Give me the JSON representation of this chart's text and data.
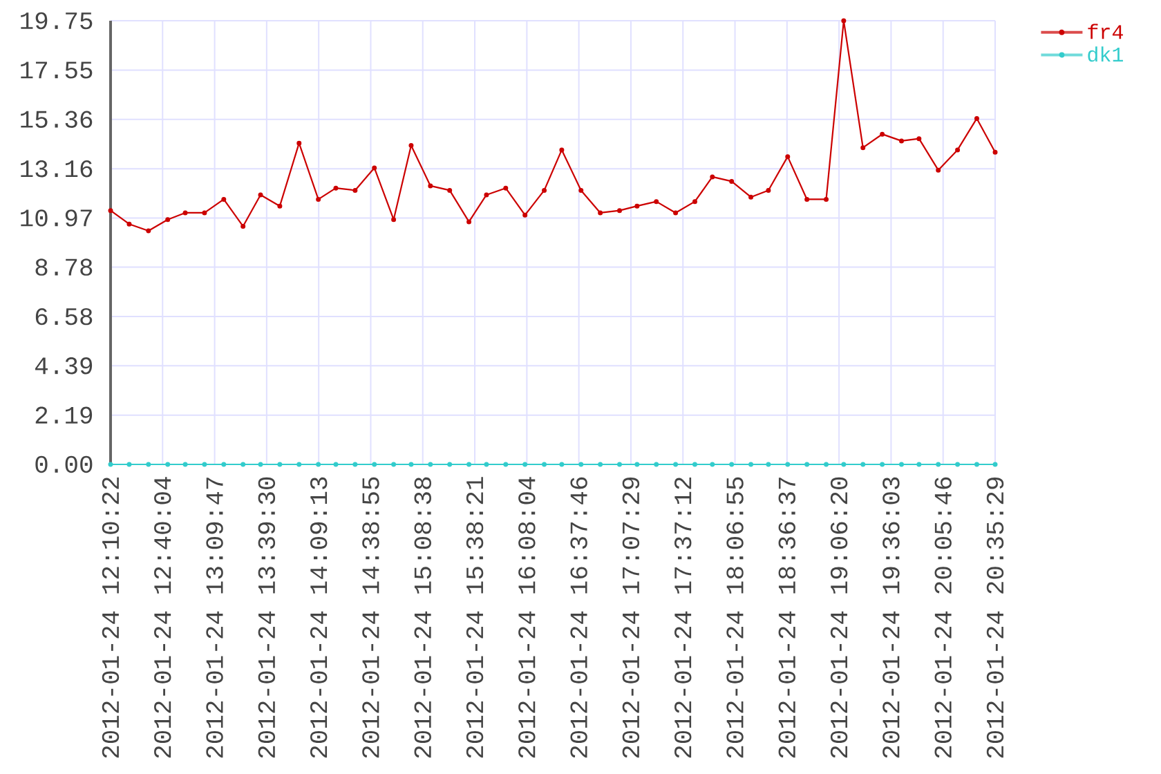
{
  "chart_data": {
    "type": "line",
    "x": [
      "2012-01-24T12:10:22",
      "2012-01-24T12:21",
      "2012-01-24T12:32",
      "2012-01-24T12:43",
      "2012-01-24T12:53",
      "2012-01-24T13:04",
      "2012-01-24T13:15",
      "2012-01-24T13:26",
      "2012-01-24T13:36",
      "2012-01-24T13:47",
      "2012-01-24T13:58",
      "2012-01-24T14:09",
      "2012-01-24T14:19",
      "2012-01-24T14:30",
      "2012-01-24T14:41",
      "2012-01-24T14:52",
      "2012-01-24T15:02",
      "2012-01-24T15:13",
      "2012-01-24T15:24",
      "2012-01-24T15:35",
      "2012-01-24T15:45",
      "2012-01-24T15:56",
      "2012-01-24T16:07",
      "2012-01-24T16:18",
      "2012-01-24T16:28",
      "2012-01-24T16:39",
      "2012-01-24T16:50",
      "2012-01-24T17:01",
      "2012-01-24T17:11",
      "2012-01-24T17:22",
      "2012-01-24T17:33",
      "2012-01-24T17:44",
      "2012-01-24T17:54",
      "2012-01-24T18:05",
      "2012-01-24T18:16",
      "2012-01-24T18:26",
      "2012-01-24T18:37",
      "2012-01-24T18:48",
      "2012-01-24T18:59",
      "2012-01-24T19:09",
      "2012-01-24T19:20",
      "2012-01-24T19:31",
      "2012-01-24T19:42",
      "2012-01-24T19:52",
      "2012-01-24T20:03",
      "2012-01-24T20:14",
      "2012-01-24T20:25",
      "2012-01-24T20:35:29"
    ],
    "series": [
      {
        "name": "fr4",
        "color": "#cc0000",
        "values": [
          11.3,
          10.7,
          10.4,
          10.9,
          11.2,
          11.2,
          11.8,
          10.6,
          12.0,
          11.5,
          14.3,
          11.8,
          12.3,
          12.2,
          13.2,
          10.9,
          14.2,
          12.4,
          12.2,
          10.8,
          12.0,
          12.3,
          11.1,
          12.2,
          14.0,
          12.2,
          11.2,
          11.3,
          11.5,
          11.7,
          11.2,
          11.7,
          12.8,
          12.6,
          11.9,
          12.2,
          13.7,
          11.8,
          11.8,
          19.75,
          14.1,
          14.7,
          14.4,
          14.5,
          13.1,
          14.0,
          15.4,
          13.9
        ]
      },
      {
        "name": "dk1",
        "color": "#33cccc",
        "values": [
          0,
          0,
          0,
          0,
          0,
          0,
          0,
          0,
          0,
          0,
          0,
          0,
          0,
          0,
          0,
          0,
          0,
          0,
          0,
          0,
          0,
          0,
          0,
          0,
          0,
          0,
          0,
          0,
          0,
          0,
          0,
          0,
          0,
          0,
          0,
          0,
          0,
          0,
          0,
          0,
          0,
          0,
          0,
          0,
          0,
          0,
          0,
          0
        ]
      }
    ],
    "xlim": [
      "2012-01-24T12:10:22",
      "2012-01-24T20:35:29"
    ],
    "xticks": [
      {
        "value": "2012-01-24T12:10:22",
        "label": "2012-01-24 12:10:22"
      },
      {
        "value": "2012-01-24T12:40:04",
        "label": "2012-01-24 12:40:04"
      },
      {
        "value": "2012-01-24T13:09:47",
        "label": "2012-01-24 13:09:47"
      },
      {
        "value": "2012-01-24T13:39:30",
        "label": "2012-01-24 13:39:30"
      },
      {
        "value": "2012-01-24T14:09:13",
        "label": "2012-01-24 14:09:13"
      },
      {
        "value": "2012-01-24T14:38:55",
        "label": "2012-01-24 14:38:55"
      },
      {
        "value": "2012-01-24T15:08:38",
        "label": "2012-01-24 15:08:38"
      },
      {
        "value": "2012-01-24T15:38:21",
        "label": "2012-01-24 15:38:21"
      },
      {
        "value": "2012-01-24T16:08:04",
        "label": "2012-01-24 16:08:04"
      },
      {
        "value": "2012-01-24T16:37:46",
        "label": "2012-01-24 16:37:46"
      },
      {
        "value": "2012-01-24T17:07:29",
        "label": "2012-01-24 17:07:29"
      },
      {
        "value": "2012-01-24T17:37:12",
        "label": "2012-01-24 17:37:12"
      },
      {
        "value": "2012-01-24T18:06:55",
        "label": "2012-01-24 18:06:55"
      },
      {
        "value": "2012-01-24T18:36:37",
        "label": "2012-01-24 18:36:37"
      },
      {
        "value": "2012-01-24T19:06:20",
        "label": "2012-01-24 19:06:20"
      },
      {
        "value": "2012-01-24T19:36:03",
        "label": "2012-01-24 19:36:03"
      },
      {
        "value": "2012-01-24T20:05:46",
        "label": "2012-01-24 20:05:46"
      },
      {
        "value": "2012-01-24T20:35:29",
        "label": "2012-01-24 20:35:29"
      }
    ],
    "ylim": [
      0,
      19.75
    ],
    "yticks": [
      {
        "value": 0,
        "label": "0.00"
      },
      {
        "value": 2.19,
        "label": "2.19"
      },
      {
        "value": 4.39,
        "label": "4.39"
      },
      {
        "value": 6.58,
        "label": "6.58"
      },
      {
        "value": 8.78,
        "label": "8.78"
      },
      {
        "value": 10.97,
        "label": "10.97"
      },
      {
        "value": 13.16,
        "label": "13.16"
      },
      {
        "value": 15.36,
        "label": "15.36"
      },
      {
        "value": 17.55,
        "label": "17.55"
      },
      {
        "value": 19.75,
        "label": "19.75"
      }
    ],
    "grid": true,
    "legend": "top right",
    "marker": "circle",
    "line_style": "solid"
  }
}
